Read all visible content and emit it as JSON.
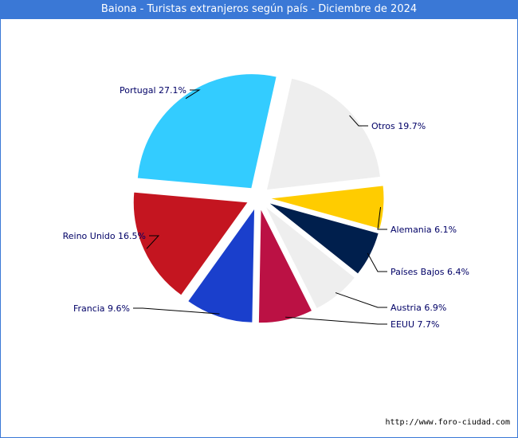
{
  "title": "Baiona - Turistas extranjeros según país - Diciembre de 2024",
  "source_url": "http://www.foro-ciudad.com",
  "chart_data": {
    "type": "pie",
    "title": "Baiona - Turistas extranjeros según país - Diciembre de 2024",
    "slices": [
      {
        "name": "Otros",
        "label": "Otros 19.7%",
        "value": 19.7,
        "color": "#eeeeee"
      },
      {
        "name": "Alemania",
        "label": "Alemania 6.1%",
        "value": 6.1,
        "color": "#ffcc00"
      },
      {
        "name": "Países Bajos",
        "label": "Países Bajos 6.4%",
        "value": 6.4,
        "color": "#001f4d"
      },
      {
        "name": "Austria",
        "label": "Austria 6.9%",
        "value": 6.9,
        "color": "#eeeeee"
      },
      {
        "name": "EEUU",
        "label": "EEUU 7.7%",
        "value": 7.7,
        "color": "#bb1144"
      },
      {
        "name": "Francia",
        "label": "Francia 9.6%",
        "value": 9.6,
        "color": "#1a3fcc"
      },
      {
        "name": "Reino Unido",
        "label": "Reino Unido 16.5%",
        "value": 16.5,
        "color": "#c41520"
      },
      {
        "name": "Portugal",
        "label": "Portugal 27.1%",
        "value": 27.1,
        "color": "#33ccff"
      }
    ]
  }
}
